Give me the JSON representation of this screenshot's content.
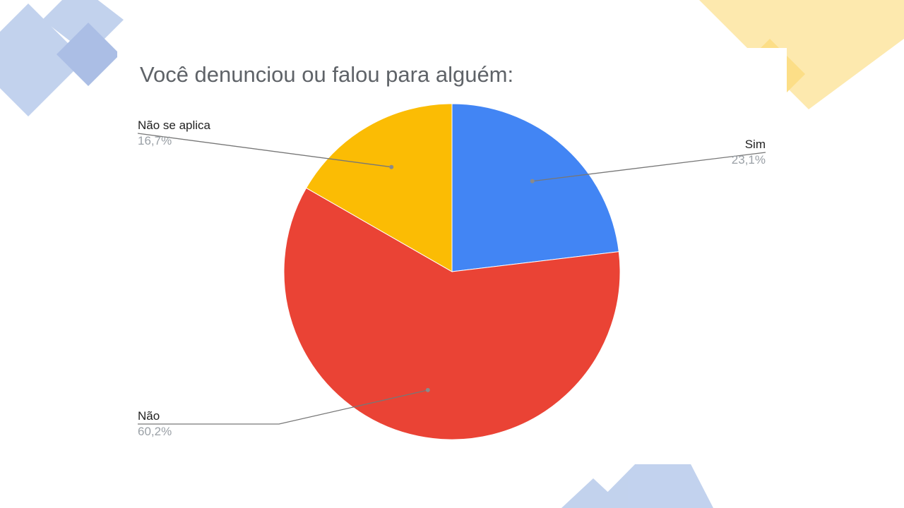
{
  "chart_data": {
    "type": "pie",
    "title": "Você denunciou ou falou para alguém:",
    "slices": [
      {
        "label": "Sim",
        "value": 23.1,
        "value_label": "23,1%",
        "color": "#4285f4"
      },
      {
        "label": "Não",
        "value": 60.2,
        "value_label": "60,2%",
        "color": "#ea4335"
      },
      {
        "label": "Não se aplica",
        "value": 16.7,
        "value_label": "16,7%",
        "color": "#fbbc04"
      }
    ],
    "start_angle": "12 o'clock",
    "direction": "clockwise",
    "labels": "outside, with leader lines"
  },
  "decor": {
    "blue_shape_color": "#aec3e8",
    "yellow_shape_color": "#fde49a"
  }
}
